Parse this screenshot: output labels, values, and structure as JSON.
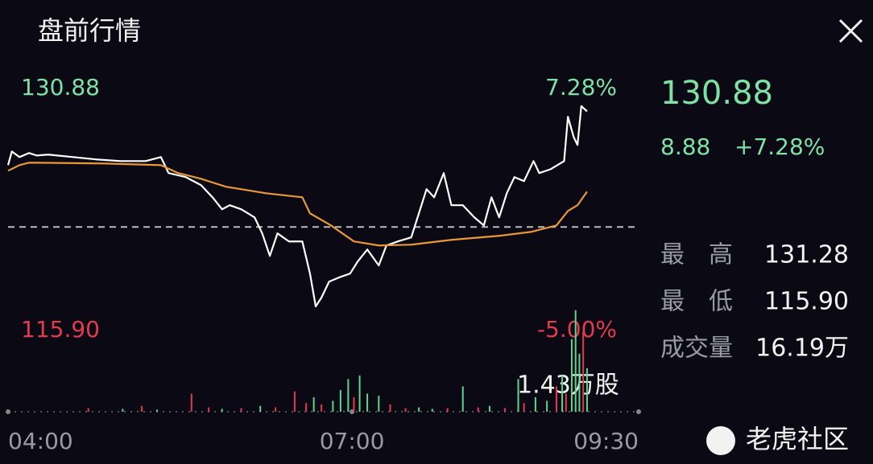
{
  "header": {
    "title": "盘前行情"
  },
  "chart_data": [
    {
      "type": "line",
      "range_labels": {
        "top_price": "130.88",
        "top_change": "7.28%",
        "bottom_price": "115.90",
        "bottom_change": "-5.00%"
      },
      "prev_close": 122.0,
      "xlim": [
        240,
        570
      ],
      "xticks": [
        {
          "value": 240,
          "label": "04:00"
        },
        {
          "value": 420,
          "label": "07:00"
        },
        {
          "value": 570,
          "label": "09:30"
        }
      ],
      "ylim": [
        115.9,
        131.28
      ],
      "series": [
        {
          "color": "#ffffff",
          "x": [
            240,
            242,
            246,
            251,
            255,
            261,
            274,
            286,
            299,
            312,
            320,
            324,
            333,
            341,
            347,
            352,
            356,
            362,
            369,
            373,
            377,
            381,
            387,
            394,
            398,
            401,
            404,
            408,
            413,
            419,
            423,
            428,
            434,
            438,
            444,
            451,
            455,
            459,
            463,
            468,
            472,
            478,
            484,
            489,
            493,
            497,
            501,
            505,
            510,
            515,
            518,
            524,
            531,
            533,
            536,
            538,
            540,
            543
          ],
          "values": [
            126.75,
            127.8,
            127.37,
            127.68,
            127.49,
            127.56,
            127.37,
            127.19,
            127.06,
            127.06,
            127.37,
            126.14,
            125.83,
            125.21,
            124.28,
            123.36,
            123.67,
            123.36,
            122.74,
            121.51,
            119.78,
            121.51,
            120.89,
            120.89,
            118.42,
            115.9,
            116.57,
            117.8,
            118.11,
            118.42,
            119.35,
            120.27,
            119.04,
            120.58,
            120.89,
            121.2,
            123.05,
            124.9,
            124.28,
            126.14,
            123.67,
            123.67,
            122.74,
            122.12,
            124.28,
            122.74,
            124.59,
            125.83,
            125.52,
            127.06,
            126.14,
            126.44,
            127.06,
            130.46,
            128.91,
            128.3,
            131.28,
            130.88
          ]
        },
        {
          "color": "#e8983a",
          "x": [
            240,
            246,
            251,
            289,
            320,
            329,
            341,
            354,
            375,
            394,
            398,
            409,
            421,
            434,
            451,
            472,
            497,
            514,
            527,
            533,
            538,
            543
          ],
          "values": [
            126.32,
            126.75,
            126.94,
            126.88,
            126.75,
            126.14,
            125.7,
            125.09,
            124.59,
            124.28,
            123.05,
            122.12,
            120.89,
            120.58,
            120.64,
            121.01,
            121.32,
            121.63,
            122.12,
            123.23,
            123.67,
            124.72
          ]
        }
      ]
    },
    {
      "type": "bar",
      "max_label": "1.43万股",
      "ylim": [
        0,
        1.43
      ],
      "x": [
        282,
        300,
        310,
        318,
        336,
        345,
        352,
        362,
        372,
        380,
        390,
        396,
        400,
        404,
        410,
        414,
        418,
        421,
        424,
        428,
        434,
        440,
        448,
        455,
        462,
        470,
        478,
        486,
        492,
        500,
        507,
        510,
        516,
        522,
        527,
        530,
        532,
        535,
        537,
        539,
        541,
        543
      ],
      "values": [
        0.05,
        0.04,
        0.08,
        0.03,
        0.25,
        0.06,
        0.04,
        0.05,
        0.08,
        0.06,
        0.28,
        0.12,
        0.2,
        0.1,
        0.15,
        0.3,
        0.45,
        0.2,
        0.5,
        0.25,
        0.22,
        0.1,
        0.05,
        0.06,
        0.04,
        0.05,
        0.35,
        0.06,
        0.08,
        0.05,
        0.45,
        0.12,
        0.2,
        0.15,
        0.35,
        0.5,
        0.25,
        1.0,
        1.4,
        0.8,
        1.1,
        0.6
      ],
      "colors": [
        "#e23a4e",
        "#5fd38f",
        "#e23a4e",
        "#5fd38f",
        "#e23a4e",
        "#e23a4e",
        "#5fd38f",
        "#e23a4e",
        "#5fd38f",
        "#e23a4e",
        "#e23a4e",
        "#e23a4e",
        "#5fd38f",
        "#e23a4e",
        "#5fd38f",
        "#5fd38f",
        "#5fd38f",
        "#e23a4e",
        "#5fd38f",
        "#5fd38f",
        "#5fd38f",
        "#e23a4e",
        "#e23a4e",
        "#5fd38f",
        "#5fd38f",
        "#e23a4e",
        "#5fd38f",
        "#e23a4e",
        "#5fd38f",
        "#e23a4e",
        "#5fd38f",
        "#e23a4e",
        "#5fd38f",
        "#5fd38f",
        "#e23a4e",
        "#5fd38f",
        "#e23a4e",
        "#5fd38f",
        "#5fd38f",
        "#5fd38f",
        "#e23a4e",
        "#5fd38f"
      ]
    }
  ],
  "quote": {
    "price": "130.88",
    "change": "8.88",
    "change_pct": "+7.28%"
  },
  "stats": [
    {
      "label": "最　高",
      "value": "131.28"
    },
    {
      "label": "最　低",
      "value": "115.90"
    },
    {
      "label": "成交量",
      "value": "16.19万"
    }
  ],
  "watermark": "老虎社区"
}
